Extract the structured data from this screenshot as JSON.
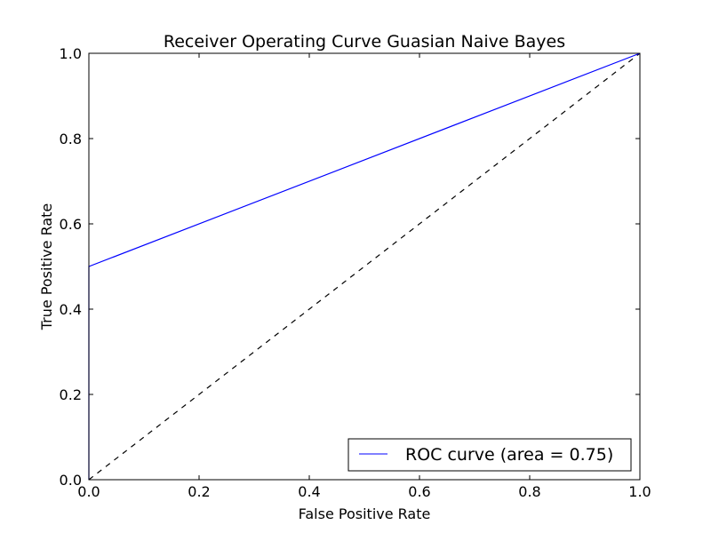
{
  "chart_data": {
    "type": "line",
    "title": "Receiver Operating Curve Guasian Naive Bayes",
    "xlabel": "False Positive Rate",
    "ylabel": "True Positive Rate",
    "xlim": [
      0.0,
      1.0
    ],
    "ylim": [
      0.0,
      1.0
    ],
    "xticks": [
      "0.0",
      "0.2",
      "0.4",
      "0.6",
      "0.8",
      "1.0"
    ],
    "yticks": [
      "0.0",
      "0.2",
      "0.4",
      "0.6",
      "0.8",
      "1.0"
    ],
    "grid": false,
    "legend_position": "lower-right",
    "series": [
      {
        "name": "ROC curve (area = 0.75)",
        "color": "#0000ff",
        "style": "solid",
        "x": [
          0.0,
          0.0,
          1.0
        ],
        "y": [
          0.0,
          0.5,
          1.0
        ]
      },
      {
        "color": "#000000",
        "style": "dashed",
        "x": [
          0.0,
          1.0
        ],
        "y": [
          0.0,
          1.0
        ]
      }
    ]
  }
}
